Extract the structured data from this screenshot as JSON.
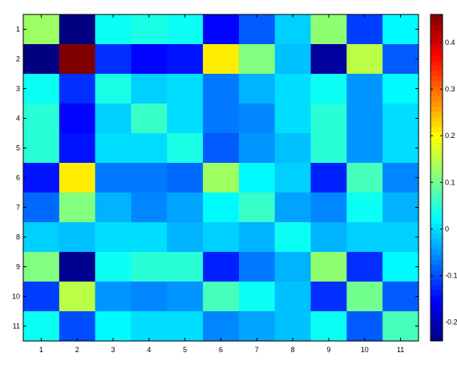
{
  "chart_data": {
    "type": "heatmap",
    "title": "",
    "xlabel": "",
    "ylabel": "",
    "x_categories": [
      "1",
      "2",
      "3",
      "4",
      "5",
      "6",
      "7",
      "8",
      "9",
      "10",
      "11"
    ],
    "y_categories": [
      "1",
      "2",
      "3",
      "4",
      "5",
      "6",
      "7",
      "8",
      "9",
      "10",
      "11"
    ],
    "values": [
      [
        0.13,
        -0.24,
        0.03,
        0.04,
        0.03,
        -0.15,
        -0.09,
        -0.01,
        0.12,
        -0.11,
        0.02
      ],
      [
        -0.24,
        0.46,
        -0.12,
        -0.15,
        -0.14,
        0.21,
        0.11,
        -0.02,
        -0.22,
        0.15,
        -0.09
      ],
      [
        0.03,
        -0.12,
        0.04,
        -0.01,
        0.0,
        -0.07,
        -0.03,
        0.0,
        0.03,
        -0.05,
        0.02
      ],
      [
        0.05,
        -0.15,
        -0.01,
        0.06,
        0.0,
        -0.07,
        -0.06,
        0.0,
        0.05,
        -0.05,
        0.0
      ],
      [
        0.05,
        -0.14,
        0.0,
        0.0,
        0.04,
        -0.09,
        -0.05,
        -0.02,
        0.05,
        -0.05,
        0.0
      ],
      [
        -0.14,
        0.21,
        -0.07,
        -0.07,
        -0.08,
        0.13,
        0.02,
        -0.01,
        -0.13,
        0.07,
        -0.06
      ],
      [
        -0.08,
        0.11,
        -0.03,
        -0.06,
        -0.04,
        0.02,
        0.06,
        -0.04,
        -0.06,
        0.03,
        -0.03
      ],
      [
        -0.01,
        -0.02,
        0.0,
        0.0,
        -0.03,
        -0.01,
        -0.03,
        0.03,
        -0.03,
        -0.01,
        -0.01
      ],
      [
        0.11,
        -0.23,
        0.03,
        0.05,
        0.05,
        -0.13,
        -0.07,
        -0.03,
        0.12,
        -0.12,
        0.02
      ],
      [
        -0.11,
        0.15,
        -0.05,
        -0.06,
        -0.05,
        0.07,
        0.03,
        -0.02,
        -0.12,
        0.1,
        -0.09
      ],
      [
        0.03,
        -0.1,
        0.02,
        0.0,
        0.0,
        -0.06,
        -0.04,
        -0.02,
        0.03,
        -0.09,
        0.07
      ]
    ],
    "colormap": "jet",
    "clim": [
      -0.24,
      0.46
    ],
    "colorbar_ticks": [
      -0.2,
      -0.1,
      0,
      0.1,
      0.2,
      0.3,
      0.4
    ],
    "colorbar_tick_labels": [
      "-0.2",
      "-0.1",
      "0",
      "0.1",
      "0.2",
      "0.3",
      "0.4"
    ],
    "grid": false,
    "colorbar_position": "right"
  }
}
